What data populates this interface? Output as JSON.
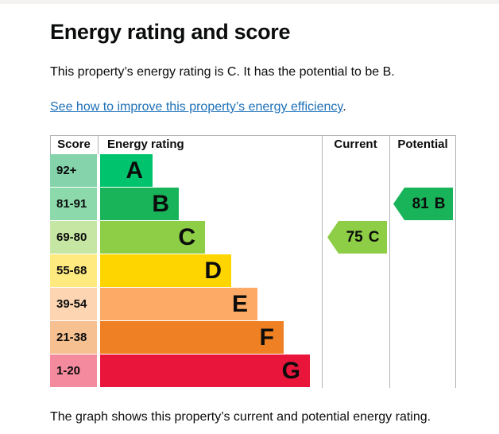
{
  "page": {
    "title": "Energy rating and score",
    "intro": "This property’s energy rating is C. It has the potential to be B.",
    "link_text": "See how to improve this property’s energy efficiency",
    "link_suffix": ".",
    "footer": "The graph shows this property’s current and potential energy rating."
  },
  "colors": {
    "text": "#0b0c0c",
    "link": "#1d70b8",
    "gridline": "#b1b4b6"
  },
  "chart_data": {
    "type": "table",
    "title": "Energy rating and score",
    "headers": {
      "score": "Score",
      "rating": "Energy rating",
      "current": "Current",
      "potential": "Potential"
    },
    "bands": [
      {
        "score_range": "92+",
        "letter": "A",
        "color": "#00c36d",
        "tint": "#84d3ab"
      },
      {
        "score_range": "81-91",
        "letter": "B",
        "color": "#19b459",
        "tint": "#8cdaac"
      },
      {
        "score_range": "69-80",
        "letter": "C",
        "color": "#8dce46",
        "tint": "#c6e7a3"
      },
      {
        "score_range": "55-68",
        "letter": "D",
        "color": "#ffd500",
        "tint": "#ffea80"
      },
      {
        "score_range": "39-54",
        "letter": "E",
        "color": "#fcaa65",
        "tint": "#fdd5b2"
      },
      {
        "score_range": "21-38",
        "letter": "F",
        "color": "#ef8023",
        "tint": "#f7c091"
      },
      {
        "score_range": "1-20",
        "letter": "G",
        "color": "#e9153b",
        "tint": "#f48a9d"
      }
    ],
    "current": {
      "score": 75,
      "band": "C",
      "band_index": 2,
      "color": "#8dce46",
      "label": "75 C"
    },
    "potential": {
      "score": 81,
      "band": "B",
      "band_index": 1,
      "color": "#19b459",
      "label": "81 B"
    }
  }
}
